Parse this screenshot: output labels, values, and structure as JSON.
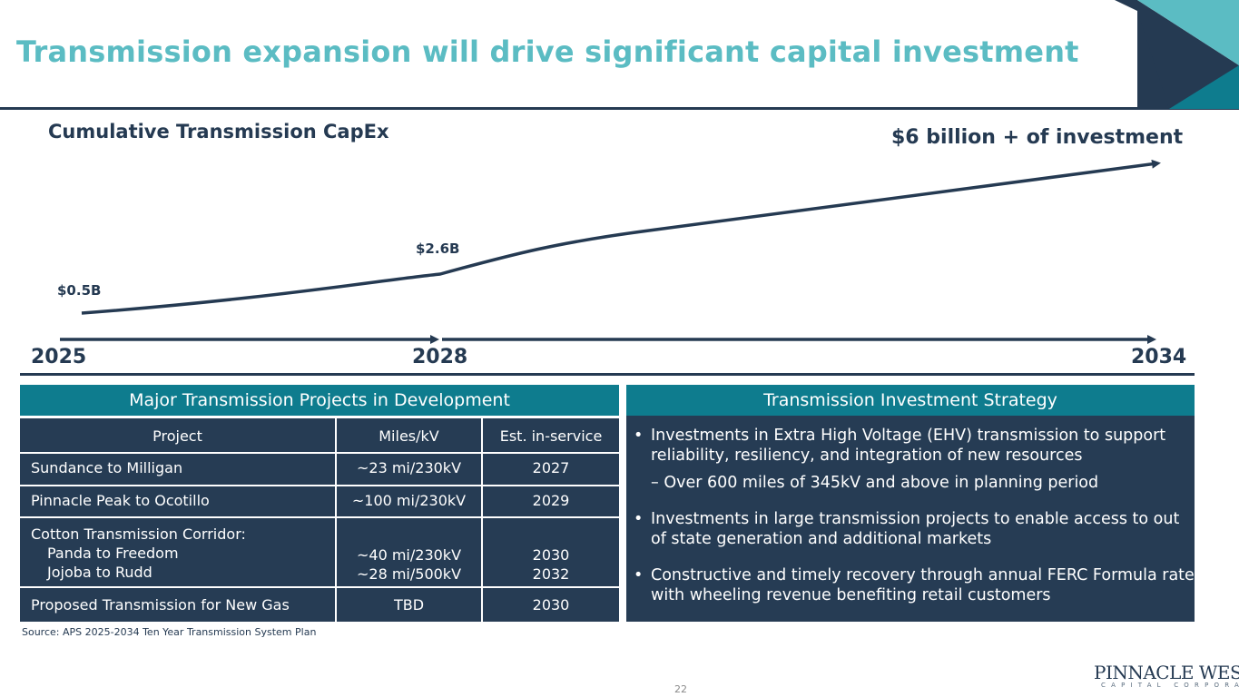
{
  "title": "Transmission expansion will drive significant capital investment",
  "chart_data": {
    "type": "line",
    "title": "Cumulative Transmission CapEx",
    "callout": "$6 billion + of investment",
    "x": [
      "2025",
      "2028",
      "2034"
    ],
    "data_labels": [
      "$0.5B",
      "$2.6B"
    ],
    "series": [
      {
        "values": [
          0.5,
          2.6,
          6.0
        ]
      }
    ],
    "xlabel": "",
    "ylabel": ""
  },
  "projects_panel": {
    "header": "Major Transmission Projects in Development",
    "columns": [
      "Project",
      "Miles/kV",
      "Est. in-service"
    ],
    "rows": [
      {
        "project": "Sundance to Milligan",
        "miles": "~23 mi/230kV",
        "year": "2027"
      },
      {
        "project": "Pinnacle Peak to Ocotillo",
        "miles": "~100 mi/230kV",
        "year": "2029"
      },
      {
        "project": "Cotton Transmission Corridor:",
        "sub": [
          "Panda to Freedom",
          "Jojoba to Rudd"
        ],
        "miles_sub": [
          "~40 mi/230kV",
          "~28 mi/500kV"
        ],
        "years_sub": [
          "2030",
          "2032"
        ]
      },
      {
        "project": "Proposed Transmission for New Gas",
        "miles": "TBD",
        "year": "2030"
      }
    ]
  },
  "strategy_panel": {
    "header": "Transmission Investment Strategy",
    "bullets": [
      "Investments in Extra High Voltage (EHV) transmission to support reliability, resiliency, and integration of new resources",
      "Investments in large transmission projects to enable access to out of state generation and additional markets",
      "Constructive and timely recovery through annual FERC Formula rate with wheeling revenue benefiting retail customers"
    ],
    "sub_bullet": "– Over 600 miles of 345kV and above in planning period",
    "bullet_symbol": "•"
  },
  "source": "Source: APS 2025-2034 Ten Year Transmission System Plan",
  "page_number": "22",
  "logo": {
    "main": "PINNACLE WEST",
    "sub": "CAPITAL CORPORATION"
  },
  "colors": {
    "teal": "#5bbcc3",
    "navy": "#253a52",
    "header_teal": "#0e7c8e",
    "panel": "#263c54"
  }
}
